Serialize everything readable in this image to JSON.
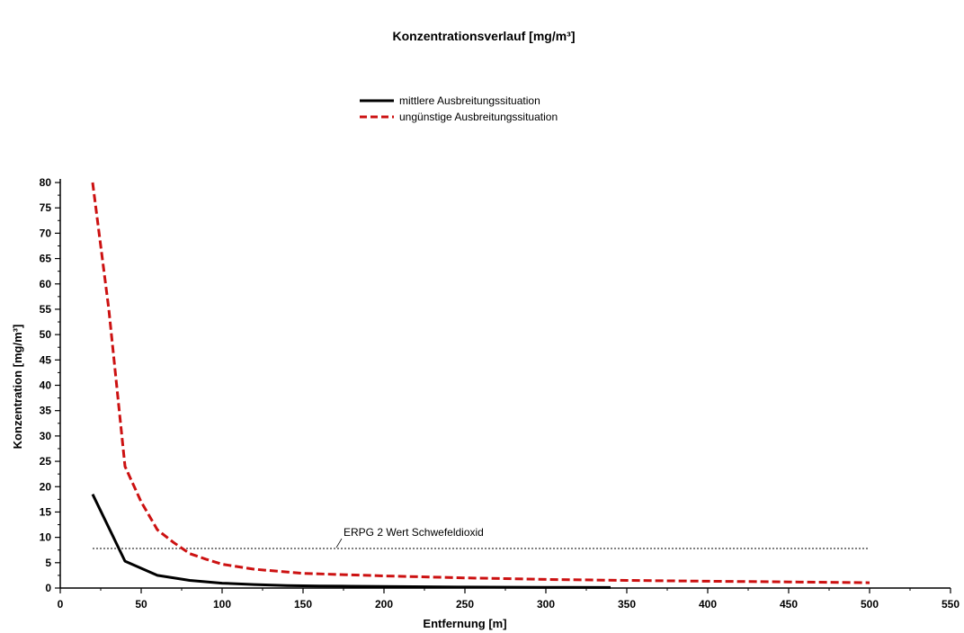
{
  "chart_data": {
    "type": "line",
    "title": "Konzentrationsverlauf [mg/m³]",
    "xlabel": "Entfernung [m]",
    "ylabel": "Konzentration [mg/m³]",
    "xlim": [
      0,
      550
    ],
    "ylim": [
      0,
      80
    ],
    "xticks": [
      0,
      50,
      100,
      150,
      200,
      250,
      300,
      350,
      400,
      450,
      500,
      550
    ],
    "yticks": [
      0,
      5,
      10,
      15,
      20,
      25,
      30,
      35,
      40,
      45,
      50,
      55,
      60,
      65,
      70,
      75,
      80
    ],
    "grid": false,
    "legend_position": "top-center",
    "series": [
      {
        "name": "mittlere Ausbreitungssituation",
        "color": "#000000",
        "style": "solid",
        "x": [
          20,
          40,
          60,
          80,
          100,
          120,
          140,
          160,
          180,
          200,
          250,
          300,
          340
        ],
        "y": [
          18.5,
          5.3,
          2.5,
          1.5,
          0.95,
          0.7,
          0.5,
          0.4,
          0.35,
          0.3,
          0.2,
          0.15,
          0.1
        ]
      },
      {
        "name": "ungünstige Ausbreitungssituation",
        "color": "#cc1111",
        "style": "dashed",
        "x": [
          20,
          30,
          40,
          50,
          60,
          70,
          80,
          90,
          100,
          120,
          150,
          200,
          250,
          300,
          350,
          400,
          450,
          500
        ],
        "y": [
          80,
          55,
          24,
          17,
          11.5,
          9,
          6.8,
          5.7,
          4.7,
          3.7,
          2.9,
          2.4,
          2.0,
          1.7,
          1.5,
          1.35,
          1.2,
          1.05
        ]
      }
    ],
    "reference_line": {
      "label": "ERPG 2 Wert Schwefeldioxid",
      "y": 7.8,
      "x_start": 20,
      "x_end": 500,
      "color": "#000000",
      "style": "dotted"
    }
  }
}
